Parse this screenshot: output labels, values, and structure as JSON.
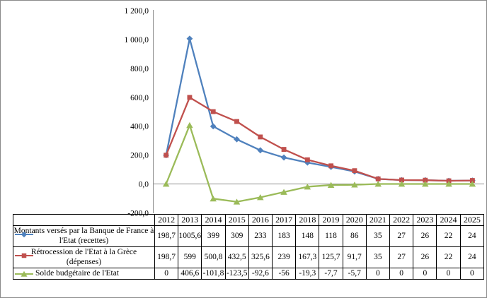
{
  "chart_data": {
    "type": "line",
    "title": "",
    "xlabel": "",
    "ylabel": "",
    "ylim": [
      -200,
      1200
    ],
    "grid": false,
    "legend_position": "data-table-left",
    "axis_color": "#8c8c8c",
    "categories": [
      "2012",
      "2013",
      "2014",
      "2015",
      "2016",
      "2017",
      "2018",
      "2019",
      "2020",
      "2021",
      "2022",
      "2023",
      "2024",
      "2025"
    ],
    "y_ticks": [
      {
        "value": 1200,
        "label": "1 200,0"
      },
      {
        "value": 1000,
        "label": "1 000,0"
      },
      {
        "value": 800,
        "label": "800,0"
      },
      {
        "value": 600,
        "label": "600,0"
      },
      {
        "value": 400,
        "label": "400,0"
      },
      {
        "value": 200,
        "label": "200,0"
      },
      {
        "value": 0,
        "label": "0,0"
      },
      {
        "value": -200,
        "label": "-200,0"
      }
    ],
    "series": [
      {
        "name": "Montants versés par la Banque de France à l'Etat (recettes)",
        "marker": "diamond",
        "color": "#4F81BD",
        "values": [
          198.7,
          1005.6,
          399,
          309,
          233,
          183,
          148,
          118,
          86,
          35,
          27,
          26,
          22,
          24
        ],
        "labels": [
          "198,7",
          "1005,6",
          "399",
          "309",
          "233",
          "183",
          "148",
          "118",
          "86",
          "35",
          "27",
          "26",
          "22",
          "24"
        ]
      },
      {
        "name": "Rétrocession de l'Etat à la Grèce (dépenses)",
        "marker": "square",
        "color": "#C0504D",
        "values": [
          198.7,
          599,
          500.8,
          432.5,
          325.6,
          239,
          167.3,
          125.7,
          91.7,
          35,
          27,
          26,
          22,
          24
        ],
        "labels": [
          "198,7",
          "599",
          "500,8",
          "432,5",
          "325,6",
          "239",
          "167,3",
          "125,7",
          "91,7",
          "35",
          "27",
          "26",
          "22",
          "24"
        ]
      },
      {
        "name": "Solde budgétaire de l'Etat",
        "marker": "triangle",
        "color": "#9BBB59",
        "values": [
          0,
          406.6,
          -101.8,
          -123.5,
          -92.6,
          -56,
          -19.3,
          -7.7,
          -5.7,
          0,
          0,
          0,
          0,
          0
        ],
        "labels": [
          "0",
          "406,6",
          "-101,8",
          "-123,5",
          "-92,6",
          "-56",
          "-19,3",
          "-7,7",
          "-5,7",
          "0",
          "0",
          "0",
          "0",
          "0"
        ]
      }
    ]
  }
}
